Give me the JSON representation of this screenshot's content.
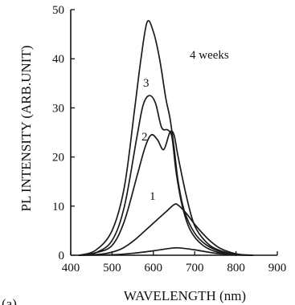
{
  "chart_data": {
    "type": "line",
    "panel_label": "(a)",
    "xlabel": "WAVELENGTH (nm)",
    "ylabel": "PL INTENSITY (ARB.UNIT)",
    "xlim": [
      400,
      900
    ],
    "ylim": [
      0,
      50
    ],
    "x_ticks": [
      400,
      500,
      600,
      700,
      800,
      900
    ],
    "y_ticks": [
      0,
      10,
      20,
      30,
      40,
      50
    ],
    "grid": false,
    "series": [
      {
        "name": "",
        "x": [
          420,
          500,
          550,
          600,
          640,
          660,
          700,
          750,
          800
        ],
        "y": [
          0,
          0.1,
          0.4,
          0.9,
          1.4,
          1.5,
          1.1,
          0.4,
          0
        ]
      },
      {
        "name": "1",
        "x": [
          420,
          480,
          520,
          550,
          580,
          610,
          630,
          650,
          660,
          680,
          700,
          730,
          760,
          800,
          840
        ],
        "y": [
          0,
          0.3,
          1.2,
          2.8,
          5,
          7.3,
          8.8,
          10.3,
          10.2,
          8.5,
          6.3,
          3.5,
          1.5,
          0.3,
          0
        ]
      },
      {
        "name": "2",
        "x": [
          420,
          460,
          500,
          530,
          560,
          580,
          595,
          610,
          625,
          640,
          650,
          660,
          680,
          700,
          730,
          760,
          800,
          840
        ],
        "y": [
          0,
          0.5,
          2,
          7,
          16,
          22,
          24.5,
          23.5,
          21.5,
          25,
          24.5,
          20,
          12,
          6,
          2.5,
          1,
          0.2,
          0
        ]
      },
      {
        "name": "3",
        "x": [
          420,
          460,
          500,
          530,
          560,
          575,
          590,
          605,
          620,
          635,
          645,
          655,
          670,
          690,
          720,
          760,
          800,
          840
        ],
        "y": [
          0,
          0.5,
          3,
          10,
          24,
          30.5,
          32.5,
          31,
          26,
          25.5,
          24,
          17,
          10,
          5,
          2,
          0.5,
          0.1,
          0
        ]
      },
      {
        "name": "4 weeks",
        "x": [
          420,
          460,
          500,
          530,
          555,
          570,
          585,
          600,
          615,
          630,
          640,
          650,
          660,
          675,
          700,
          730,
          770,
          800,
          840
        ],
        "y": [
          0,
          1,
          5,
          14,
          30,
          40,
          47.5,
          45.5,
          40,
          32,
          28,
          22,
          15,
          9,
          4.5,
          2,
          0.5,
          0.1,
          0
        ]
      }
    ]
  }
}
